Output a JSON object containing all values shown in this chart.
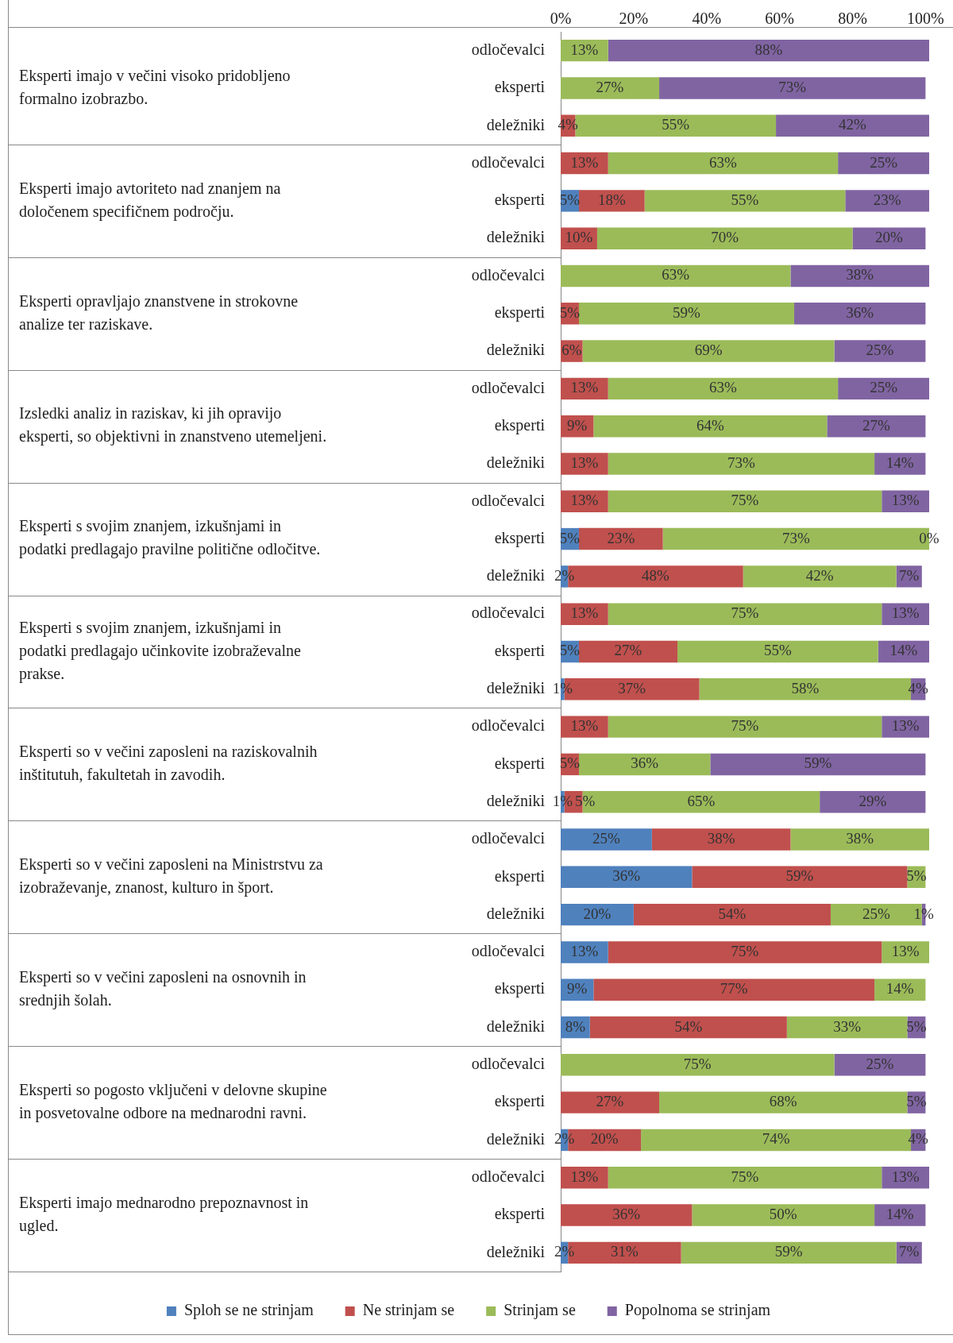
{
  "chart_data": {
    "type": "bar",
    "orientation": "horizontal",
    "stacked": true,
    "grid": false,
    "legend": "bottom",
    "categories": [
      "odločevalci",
      "eksperti",
      "deležniki",
      "odločevalci",
      "eksperti",
      "deležniki",
      "odločevalci",
      "eksperti",
      "deležniki",
      "odločevalci",
      "eksperti",
      "deležniki",
      "odločevalci",
      "eksperti",
      "deležniki",
      "odločevalci",
      "eksperti",
      "deležniki",
      "odločevalci",
      "eksperti",
      "deležniki",
      "odločevalci",
      "eksperti",
      "deležniki",
      "odločevalci",
      "eksperti",
      "deležniki",
      "odločevalci",
      "eksperti",
      "deležniki",
      "odločevalci",
      "eksperti",
      "deležniki"
    ],
    "xlim": [
      0,
      101
    ],
    "xticks": [
      {
        "value": 0,
        "label": "0%"
      },
      {
        "value": 20,
        "label": "20%"
      },
      {
        "value": 40,
        "label": "40%"
      },
      {
        "value": 60,
        "label": "60%"
      },
      {
        "value": 80,
        "label": "80%"
      },
      {
        "value": 100,
        "label": "100%"
      }
    ],
    "annotations": [
      "Eksperti imajo v večini visoko pridobljeno formalno izobrazbo.",
      "Eksperti imajo avtoriteto nad znanjem na določenem specifičnem področju.",
      "Eksperti opravljajo znanstvene in strokovne analize ter raziskave.",
      "Izsledki analiz in raziskav, ki jih opravijo eksperti, so objektivni in znanstveno utemeljeni.",
      "Eksperti s svojim znanjem, izkušnjami in podatki predlagajo pravilne politične odločitve.",
      "Eksperti s svojim znanjem, izkušnjami in podatki predlagajo učinkovite izobraževalne prakse.",
      "Eksperti so v večini zaposleni na raziskovalnih inštitutuh, fakultetah in zavodih.",
      "Eksperti so v večini zaposleni na Ministrstvu za izobraževanje, znanost, kulturo in šport.",
      "Eksperti so v večini zaposleni na osnovnih in srednjih šolah.",
      "Eksperti so pogosto vključeni v delovne skupine in posvetovalne odbore na mednarodni ravni.",
      "Eksperti imajo mednarodno prepoznavnost in ugled."
    ],
    "series": [
      {
        "name": "Sploh se ne strinjam",
        "color": "#4f81bd",
        "values": [
          null,
          null,
          null,
          null,
          5,
          null,
          null,
          null,
          null,
          null,
          null,
          null,
          null,
          5,
          2,
          null,
          5,
          1,
          null,
          null,
          1,
          25,
          36,
          20,
          13,
          9,
          8,
          null,
          null,
          2,
          null,
          null,
          2
        ],
        "value_labels": [
          null,
          null,
          null,
          null,
          "5%",
          null,
          null,
          null,
          null,
          null,
          null,
          null,
          null,
          "5%",
          "2%",
          null,
          "5%",
          "1%",
          null,
          null,
          "1%",
          "25%",
          "36%",
          "20%",
          "13%",
          "9%",
          "8%",
          null,
          null,
          "2%",
          null,
          null,
          "2%"
        ]
      },
      {
        "name": "Ne strinjam se",
        "color": "#c0504d",
        "values": [
          null,
          null,
          4,
          13,
          18,
          10,
          null,
          5,
          6,
          13,
          9,
          13,
          13,
          23,
          48,
          13,
          27,
          37,
          13,
          5,
          5,
          38,
          59,
          54,
          75,
          77,
          54,
          null,
          27,
          20,
          13,
          36,
          31
        ],
        "value_labels": [
          null,
          null,
          "4%",
          "13%",
          "18%",
          "10%",
          null,
          "5%",
          "6%",
          "13%",
          "9%",
          "13%",
          "13%",
          "23%",
          "48%",
          "13%",
          "27%",
          "37%",
          "13%",
          "5%",
          "5%",
          "38%",
          "59%",
          "54%",
          "75%",
          "77%",
          "54%",
          null,
          "27%",
          "20%",
          "13%",
          "36%",
          "31%"
        ]
      },
      {
        "name": "Strinjam se",
        "color": "#9bbb59",
        "values": [
          13,
          27,
          55,
          63,
          55,
          70,
          63,
          59,
          69,
          63,
          64,
          73,
          75,
          73,
          42,
          75,
          55,
          58,
          75,
          36,
          65,
          38,
          5,
          25,
          13,
          14,
          33,
          75,
          68,
          74,
          75,
          50,
          59
        ],
        "value_labels": [
          "13%",
          "27%",
          "55%",
          "63%",
          "55%",
          "70%",
          "63%",
          "59%",
          "69%",
          "63%",
          "64%",
          "73%",
          "75%",
          "73%",
          "42%",
          "75%",
          "55%",
          "58%",
          "75%",
          "36%",
          "65%",
          "38%",
          "5%",
          "25%",
          "13%",
          "14%",
          "33%",
          "75%",
          "68%",
          "74%",
          "75%",
          "50%",
          "59%"
        ]
      },
      {
        "name": "Popolnoma se strinjam",
        "color": "#8064a2",
        "values": [
          88,
          73,
          42,
          25,
          23,
          20,
          38,
          36,
          25,
          25,
          27,
          14,
          13,
          0,
          7,
          13,
          14,
          4,
          13,
          59,
          29,
          null,
          null,
          1,
          null,
          null,
          5,
          25,
          5,
          4,
          13,
          14,
          7
        ],
        "value_labels": [
          "88%",
          "73%",
          "42%",
          "25%",
          "23%",
          "20%",
          "38%",
          "36%",
          "25%",
          "25%",
          "27%",
          "14%",
          "13%",
          "0%",
          "7%",
          "13%",
          "14%",
          "4%",
          "13%",
          "59%",
          "29%",
          null,
          null,
          "1%",
          null,
          null,
          "5%",
          "25%",
          "5%",
          "4%",
          "13%",
          "14%",
          "7%"
        ]
      }
    ]
  }
}
